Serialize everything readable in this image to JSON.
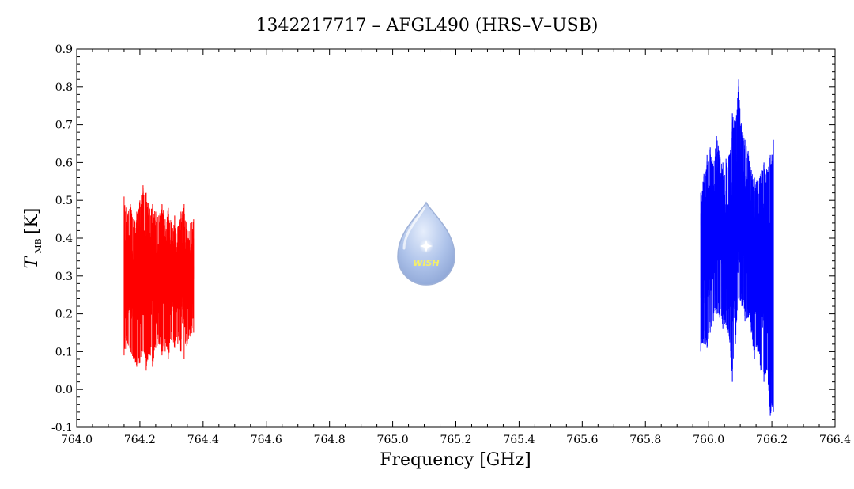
{
  "chart_data": {
    "type": "line",
    "title": "1342217717 – AFGL490 (HRS–V–USB)",
    "xlabel": "Frequency [GHz]",
    "ylabel": {
      "main": "T",
      "sub": "MB",
      "unit": "[K]"
    },
    "xlim": [
      764.0,
      766.4
    ],
    "ylim": [
      -0.1,
      0.9
    ],
    "x_ticks": [
      "764.0",
      "764.2",
      "764.4",
      "764.6",
      "764.8",
      "765.0",
      "765.2",
      "765.4",
      "765.6",
      "765.8",
      "766.0",
      "766.2",
      "766.4"
    ],
    "y_ticks": [
      "-0.1",
      "0.0",
      "0.1",
      "0.2",
      "0.3",
      "0.4",
      "0.5",
      "0.6",
      "0.7",
      "0.8",
      "0.9"
    ],
    "grid": false,
    "series": [
      {
        "color": "#ff0000",
        "x": [
          764.15,
          764.16,
          764.17,
          764.18,
          764.19,
          764.2,
          764.21,
          764.22,
          764.23,
          764.24,
          764.25,
          764.26,
          764.27,
          764.28,
          764.29,
          764.3,
          764.31,
          764.32,
          764.33,
          764.34,
          764.35,
          764.36,
          764.37
        ],
        "y": [
          0.3,
          0.28,
          0.32,
          0.27,
          0.31,
          0.29,
          0.33,
          0.28,
          0.3,
          0.32,
          0.27,
          0.29,
          0.31,
          0.3,
          0.28,
          0.32,
          0.29,
          0.3,
          0.31,
          0.27,
          0.3,
          0.29,
          0.31
        ],
        "y_min": [
          0.09,
          0.12,
          0.1,
          0.08,
          0.06,
          0.07,
          0.1,
          0.05,
          0.09,
          0.06,
          0.11,
          0.12,
          0.09,
          0.1,
          0.08,
          0.13,
          0.11,
          0.12,
          0.1,
          0.08,
          0.12,
          0.14,
          0.15
        ],
        "y_max": [
          0.51,
          0.46,
          0.49,
          0.45,
          0.47,
          0.5,
          0.54,
          0.52,
          0.48,
          0.49,
          0.47,
          0.46,
          0.49,
          0.45,
          0.48,
          0.44,
          0.46,
          0.43,
          0.47,
          0.49,
          0.42,
          0.44,
          0.45
        ]
      },
      {
        "color": "#0000ff",
        "x": [
          765.975,
          765.985,
          765.995,
          766.005,
          766.015,
          766.025,
          766.035,
          766.045,
          766.055,
          766.065,
          766.075,
          766.085,
          766.095,
          766.105,
          766.115,
          766.125,
          766.135,
          766.145,
          766.155,
          766.165,
          766.175,
          766.185,
          766.195,
          766.205
        ],
        "y": [
          0.34,
          0.36,
          0.38,
          0.4,
          0.42,
          0.44,
          0.47,
          0.45,
          0.38,
          0.34,
          0.36,
          0.4,
          0.5,
          0.48,
          0.46,
          0.41,
          0.36,
          0.33,
          0.35,
          0.34,
          0.32,
          0.31,
          0.33,
          0.34
        ],
        "y_min": [
          0.1,
          0.12,
          0.11,
          0.15,
          0.18,
          0.2,
          0.19,
          0.16,
          0.17,
          0.14,
          0.02,
          0.12,
          0.24,
          0.22,
          0.18,
          0.19,
          0.15,
          0.08,
          0.1,
          0.05,
          0.02,
          0.05,
          -0.07,
          -0.06
        ],
        "y_max": [
          0.52,
          0.57,
          0.62,
          0.64,
          0.59,
          0.67,
          0.63,
          0.6,
          0.61,
          0.62,
          0.73,
          0.71,
          0.82,
          0.68,
          0.66,
          0.63,
          0.58,
          0.56,
          0.55,
          0.57,
          0.6,
          0.58,
          0.62,
          0.66
        ]
      }
    ]
  },
  "logo": {
    "text": "WISH"
  }
}
